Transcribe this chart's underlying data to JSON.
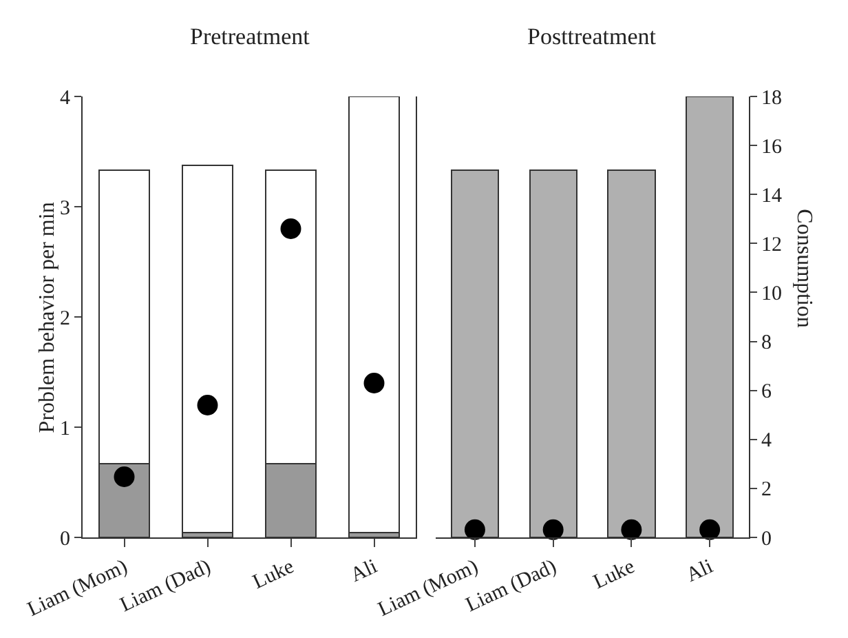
{
  "chart_data": [
    {
      "type": "bar",
      "title": "Pretreatment",
      "ylabel": "Problem behavior per min",
      "categories": [
        "Liam (Mom)",
        "Liam (Dad)",
        "Luke",
        "Ali"
      ],
      "stacked": true,
      "ylim": [
        0,
        4
      ],
      "yticks": [
        0,
        1,
        2,
        3,
        4
      ],
      "y2lim": [
        0,
        18
      ],
      "grid": false,
      "legend": false,
      "marker": "circle",
      "series": [
        {
          "color": "#999999",
          "axis": "y2",
          "values": [
            3,
            0.2,
            3,
            0.2
          ]
        },
        {
          "color": "#ffffff",
          "axis": "y2",
          "values": [
            12,
            15,
            12,
            17.8
          ]
        },
        {
          "type": "scatter",
          "color": "#000000",
          "values": [
            0.55,
            1.2,
            2.8,
            1.4
          ]
        }
      ]
    },
    {
      "type": "bar",
      "title": "Posttreatment",
      "y2label": "Consumption",
      "categories": [
        "Liam (Mom)",
        "Liam (Dad)",
        "Luke",
        "Ali"
      ],
      "ylim": [
        0,
        4
      ],
      "y2lim": [
        0,
        18
      ],
      "y2ticks": [
        0,
        2,
        4,
        6,
        8,
        10,
        12,
        14,
        16,
        18
      ],
      "grid": false,
      "legend": false,
      "marker": "circle",
      "series": [
        {
          "color": "#b0b0b0",
          "axis": "y2",
          "values": [
            15,
            15,
            15,
            18
          ]
        },
        {
          "type": "scatter",
          "color": "#000000",
          "values": [
            0.07,
            0.07,
            0.07,
            0.07
          ]
        }
      ]
    }
  ]
}
